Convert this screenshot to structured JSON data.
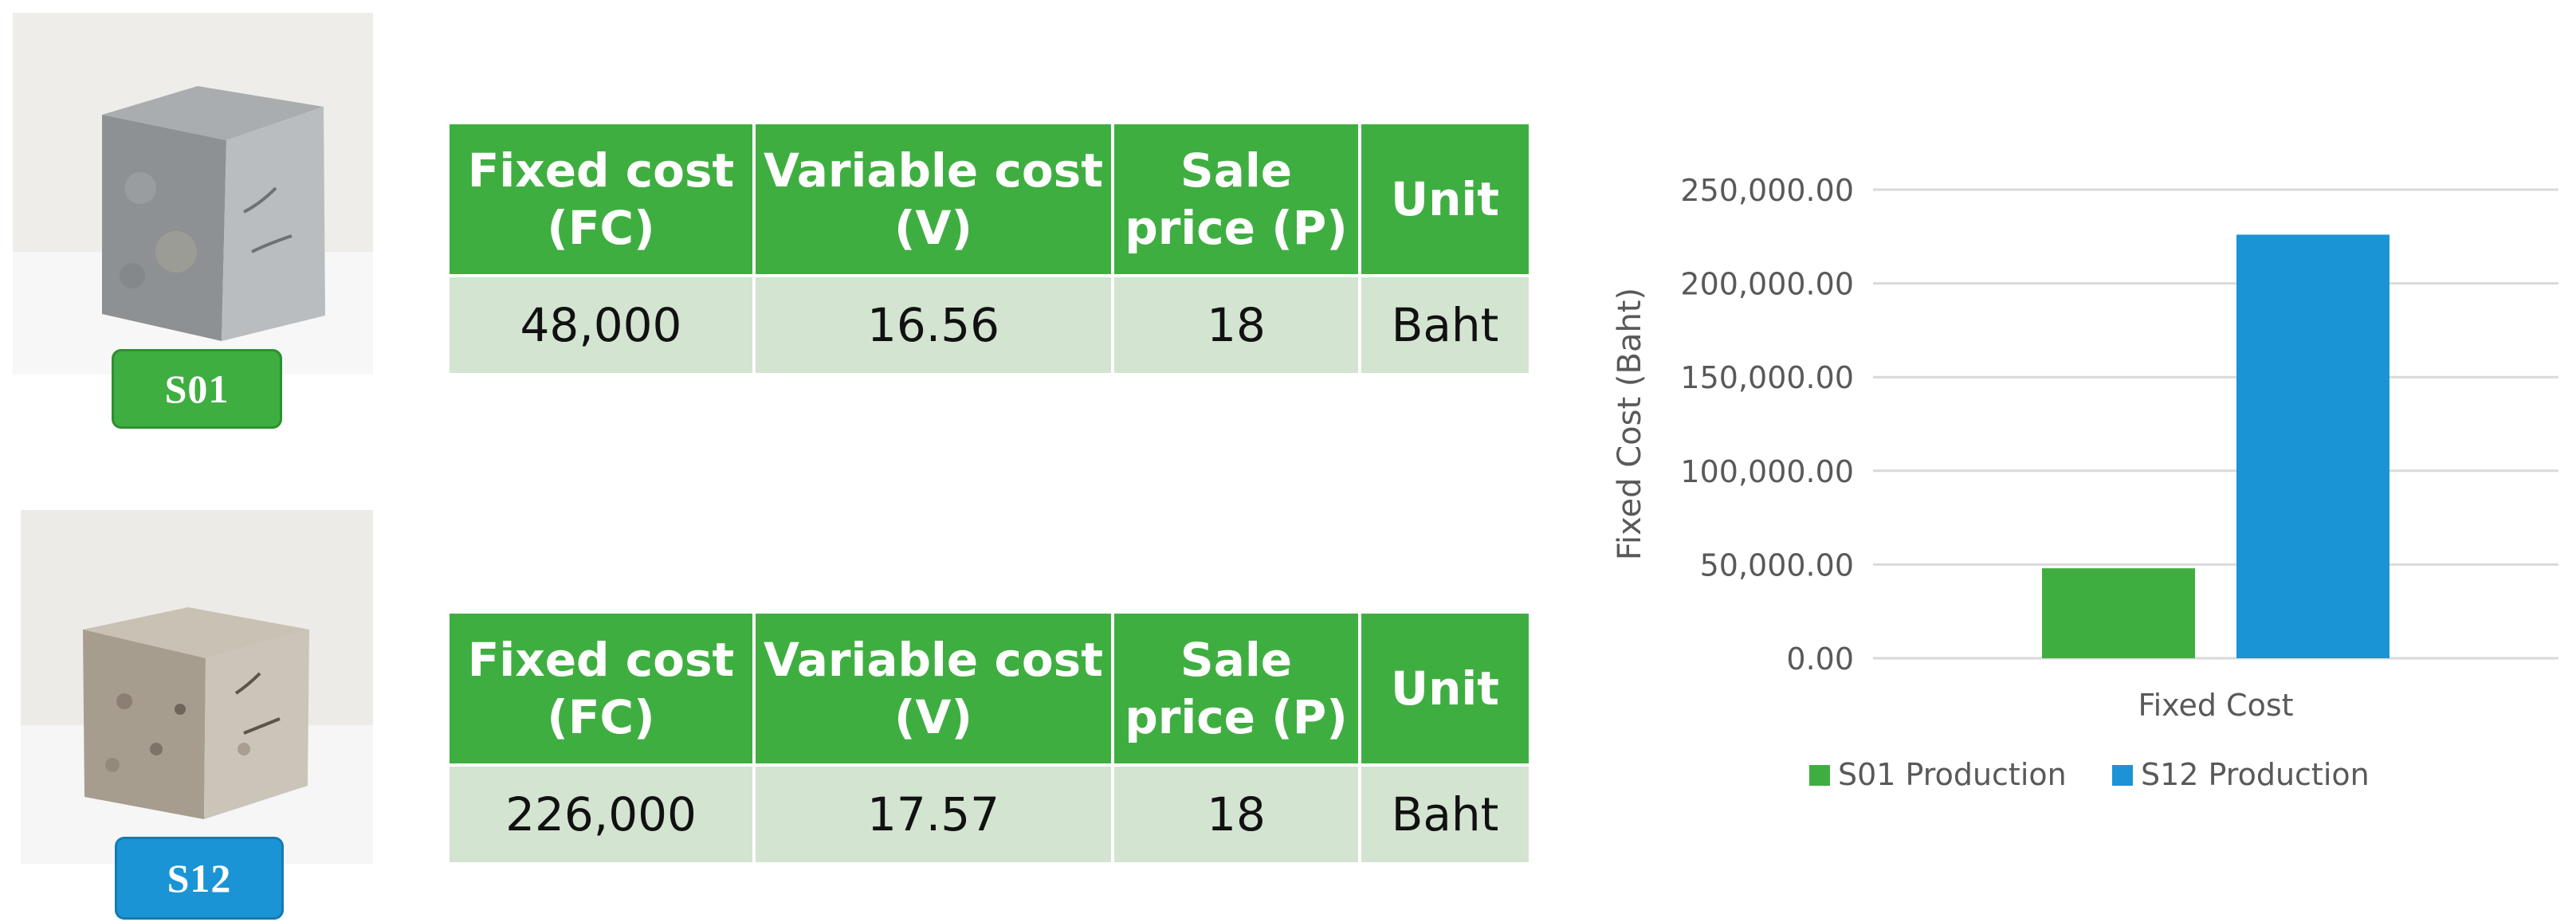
{
  "samples": [
    {
      "id": "s01",
      "label": "S01",
      "color": "#3fae41"
    },
    {
      "id": "s12",
      "label": "S12",
      "color": "#1b94d6"
    }
  ],
  "tables": {
    "headers": [
      "Fixed cost (FC)",
      "Variable cost (V)",
      "Sale price (P)",
      "Unit"
    ],
    "header_lines": [
      [
        "Fixed cost",
        "(FC)"
      ],
      [
        "Variable cost",
        "(V)"
      ],
      [
        "Sale",
        "price (P)"
      ],
      [
        "Unit"
      ]
    ],
    "s01": {
      "fixed_cost": "48,000",
      "variable_cost": "16.56",
      "sale_price": "18",
      "unit": "Baht"
    },
    "s12": {
      "fixed_cost": "226,000",
      "variable_cost": "17.57",
      "sale_price": "18",
      "unit": "Baht"
    }
  },
  "chart_data": {
    "type": "bar",
    "categories": [
      "Fixed Cost"
    ],
    "series": [
      {
        "name": "S01 Production",
        "values": [
          48000
        ],
        "color": "#3fae41"
      },
      {
        "name": "S12 Production",
        "values": [
          226000
        ],
        "color": "#1b94d6"
      }
    ],
    "xlabel": "Fixed Cost",
    "ylabel": "Fixed Cost (Baht)",
    "ylim": [
      0,
      250000
    ],
    "yticks": [
      0,
      50000,
      100000,
      150000,
      200000,
      250000
    ],
    "ytick_labels": [
      "0.00",
      "50,000.00",
      "100,000.00",
      "150,000.00",
      "200,000.00",
      "250,000.00"
    ],
    "grid": true,
    "legend": "bottom"
  }
}
